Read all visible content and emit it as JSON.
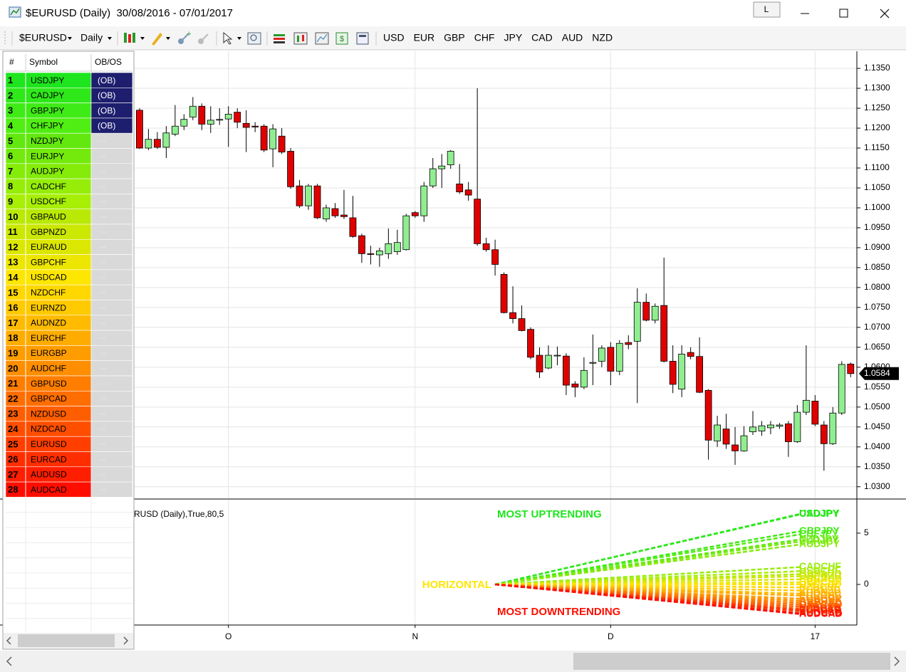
{
  "window": {
    "title": "$EURUSD (Daily)  30/08/2016 - 07/01/2017",
    "button": "L"
  },
  "toolbar": {
    "symbol": "$EURUSD",
    "period": "Daily",
    "currencies": [
      "USD",
      "EUR",
      "GBP",
      "CHF",
      "JPY",
      "CAD",
      "AUD",
      "NZD"
    ]
  },
  "symbol_table": {
    "headers": [
      "#",
      "Symbol",
      "OB/OS"
    ],
    "rows": [
      {
        "rank": 1,
        "symbol": "USDJPY",
        "obos": "(OB)"
      },
      {
        "rank": 2,
        "symbol": "CADJPY",
        "obos": "(OB)"
      },
      {
        "rank": 3,
        "symbol": "GBPJPY",
        "obos": "(OB)"
      },
      {
        "rank": 4,
        "symbol": "CHFJPY",
        "obos": "(OB)"
      },
      {
        "rank": 5,
        "symbol": "NZDJPY",
        "obos": "..."
      },
      {
        "rank": 6,
        "symbol": "EURJPY",
        "obos": "..."
      },
      {
        "rank": 7,
        "symbol": "AUDJPY",
        "obos": "..."
      },
      {
        "rank": 8,
        "symbol": "CADCHF",
        "obos": "..."
      },
      {
        "rank": 9,
        "symbol": "USDCHF",
        "obos": "..."
      },
      {
        "rank": 10,
        "symbol": "GBPAUD",
        "obos": "..."
      },
      {
        "rank": 11,
        "symbol": "GBPNZD",
        "obos": "..."
      },
      {
        "rank": 12,
        "symbol": "EURAUD",
        "obos": "..."
      },
      {
        "rank": 13,
        "symbol": "GBPCHF",
        "obos": "..."
      },
      {
        "rank": 14,
        "symbol": "USDCAD",
        "obos": "..."
      },
      {
        "rank": 15,
        "symbol": "NZDCHF",
        "obos": "..."
      },
      {
        "rank": 16,
        "symbol": "EURNZD",
        "obos": "..."
      },
      {
        "rank": 17,
        "symbol": "AUDNZD",
        "obos": "..."
      },
      {
        "rank": 18,
        "symbol": "EURCHF",
        "obos": "..."
      },
      {
        "rank": 19,
        "symbol": "EURGBP",
        "obos": "..."
      },
      {
        "rank": 20,
        "symbol": "AUDCHF",
        "obos": "..."
      },
      {
        "rank": 21,
        "symbol": "GBPUSD",
        "obos": "..."
      },
      {
        "rank": 22,
        "symbol": "GBPCAD",
        "obos": "..."
      },
      {
        "rank": 23,
        "symbol": "NZDUSD",
        "obos": "..."
      },
      {
        "rank": 24,
        "symbol": "NZDCAD",
        "obos": "..."
      },
      {
        "rank": 25,
        "symbol": "EURUSD",
        "obos": "..."
      },
      {
        "rank": 26,
        "symbol": "EURCAD",
        "obos": "..."
      },
      {
        "rank": 27,
        "symbol": "AUDUSD",
        "obos": "..."
      },
      {
        "rank": 28,
        "symbol": "AUDCAD",
        "obos": "..."
      }
    ]
  },
  "chart_data": [
    {
      "type": "candlestick",
      "up_color": "#90ee90",
      "down_color": "#e00000",
      "grid": true,
      "xlim": [
        -15.3,
        80.7
      ],
      "xticks": [
        {
          "value": 10,
          "label": "O"
        },
        {
          "value": 31,
          "label": "N"
        },
        {
          "value": 53,
          "label": "D"
        },
        {
          "value": 76,
          "label": "17"
        }
      ],
      "ylim": [
        1.0271,
        1.1393
      ],
      "yticks": [
        {
          "value": 1.03,
          "label": "1.0300"
        },
        {
          "value": 1.035,
          "label": "1.0350"
        },
        {
          "value": 1.04,
          "label": "1.0400"
        },
        {
          "value": 1.045,
          "label": "1.0450"
        },
        {
          "value": 1.05,
          "label": "1.0500"
        },
        {
          "value": 1.055,
          "label": "1.0550"
        },
        {
          "value": 1.06,
          "label": "1.0600"
        },
        {
          "value": 1.065,
          "label": "1.0650"
        },
        {
          "value": 1.07,
          "label": "1.0700"
        },
        {
          "value": 1.075,
          "label": "1.0750"
        },
        {
          "value": 1.08,
          "label": "1.0800"
        },
        {
          "value": 1.085,
          "label": "1.0850"
        },
        {
          "value": 1.09,
          "label": "1.0900"
        },
        {
          "value": 1.095,
          "label": "1.0950"
        },
        {
          "value": 1.1,
          "label": "1.1000"
        },
        {
          "value": 1.105,
          "label": "1.1050"
        },
        {
          "value": 1.11,
          "label": "1.1100"
        },
        {
          "value": 1.115,
          "label": "1.1150"
        },
        {
          "value": 1.12,
          "label": "1.1200"
        },
        {
          "value": 1.125,
          "label": "1.1250"
        },
        {
          "value": 1.13,
          "label": "1.1300"
        },
        {
          "value": 1.135,
          "label": "1.1350"
        }
      ],
      "open": [
        1.1245,
        1.115,
        1.1172,
        1.1152,
        1.1185,
        1.1205,
        1.1228,
        1.1255,
        1.121,
        1.122,
        1.1223,
        1.124,
        1.1212,
        1.1205,
        1.1205,
        1.1148,
        1.118,
        1.1142,
        1.1055,
        1.1005,
        1.1055,
        1.0972,
        1.0998,
        1.0982,
        1.0975,
        1.093,
        1.0885,
        1.0882,
        1.0885,
        1.089,
        1.0895,
        1.0988,
        1.098,
        1.1055,
        1.1098,
        1.1108,
        1.106,
        1.1045,
        1.1022,
        1.091,
        1.0895,
        1.0833,
        1.0737,
        1.0722,
        1.0695,
        1.063,
        1.0598,
        1.063,
        1.0628,
        1.0558,
        1.055,
        1.061,
        1.0615,
        1.065,
        1.059,
        1.0662,
        1.0665,
        1.0763,
        1.0718,
        1.0755,
        1.0615,
        1.0545,
        1.0637,
        1.0627,
        1.0542,
        1.0415,
        1.0445,
        1.0405,
        1.039,
        1.0438,
        1.044,
        1.0448,
        1.0452,
        1.0458,
        1.0413,
        1.0487,
        1.0515,
        1.0455,
        1.0408,
        1.0485,
        1.0608
      ],
      "high": [
        1.125,
        1.1198,
        1.119,
        1.1205,
        1.1258,
        1.1235,
        1.1278,
        1.1262,
        1.1255,
        1.125,
        1.1255,
        1.125,
        1.1245,
        1.1215,
        1.121,
        1.121,
        1.12,
        1.115,
        1.107,
        1.106,
        1.106,
        1.1008,
        1.1012,
        1.1045,
        1.103,
        1.0935,
        1.0905,
        1.09,
        1.0948,
        1.0945,
        1.0985,
        1.0992,
        1.1065,
        1.1125,
        1.1135,
        1.1145,
        1.111,
        1.1065,
        1.13,
        1.0925,
        1.092,
        1.0838,
        1.0803,
        1.0755,
        1.07,
        1.065,
        1.0655,
        1.0652,
        1.0635,
        1.0565,
        1.0625,
        1.0682,
        1.0655,
        1.0663,
        1.0668,
        1.068,
        1.0798,
        1.0785,
        1.076,
        1.0875,
        1.0655,
        1.0655,
        1.065,
        1.0675,
        1.0545,
        1.0478,
        1.0483,
        1.045,
        1.0452,
        1.049,
        1.0465,
        1.0465,
        1.046,
        1.0465,
        1.0505,
        1.0655,
        1.053,
        1.0465,
        1.05,
        1.0615,
        1.0612
      ],
      "low": [
        1.1148,
        1.1145,
        1.1148,
        1.1125,
        1.118,
        1.1195,
        1.122,
        1.1195,
        1.1188,
        1.1208,
        1.1153,
        1.12,
        1.114,
        1.119,
        1.114,
        1.1102,
        1.1135,
        1.1048,
        1.1,
        1.0995,
        1.0972,
        1.0965,
        1.0975,
        1.0972,
        1.0925,
        1.0862,
        1.0858,
        1.0852,
        1.0872,
        1.0882,
        1.0893,
        1.0975,
        1.0965,
        1.105,
        1.105,
        1.1098,
        1.1035,
        1.1018,
        1.0905,
        1.089,
        1.083,
        1.0735,
        1.071,
        1.069,
        1.062,
        1.0573,
        1.0595,
        1.0605,
        1.053,
        1.0525,
        1.0545,
        1.0555,
        1.06,
        1.0555,
        1.058,
        1.0645,
        1.051,
        1.0715,
        1.071,
        1.0612,
        1.0535,
        1.0525,
        1.062,
        1.0535,
        1.0368,
        1.04,
        1.0395,
        1.0355,
        1.0388,
        1.043,
        1.0428,
        1.0432,
        1.0445,
        1.0375,
        1.041,
        1.048,
        1.0452,
        1.034,
        1.0405,
        1.048,
        1.0575
      ],
      "close": [
        1.115,
        1.1172,
        1.1152,
        1.1188,
        1.1205,
        1.1222,
        1.1255,
        1.121,
        1.122,
        1.1222,
        1.1235,
        1.1215,
        1.1202,
        1.1203,
        1.1145,
        1.1198,
        1.114,
        1.1053,
        1.1005,
        1.1055,
        1.0975,
        1.1,
        1.098,
        1.0978,
        1.0928,
        1.0885,
        1.0883,
        1.0892,
        1.091,
        1.0913,
        1.098,
        1.098,
        1.1055,
        1.1098,
        1.1105,
        1.1142,
        1.104,
        1.1032,
        1.091,
        1.0895,
        1.0858,
        1.0737,
        1.0722,
        1.0692,
        1.0625,
        1.0588,
        1.063,
        1.063,
        1.0555,
        1.055,
        1.0592,
        1.0612,
        1.0648,
        1.059,
        1.066,
        1.0657,
        1.0763,
        1.0718,
        1.0753,
        1.0615,
        1.0557,
        1.0633,
        1.0627,
        1.0537,
        1.0417,
        1.0455,
        1.0407,
        1.039,
        1.0428,
        1.045,
        1.0453,
        1.0455,
        1.0455,
        1.0413,
        1.0487,
        1.0517,
        1.0457,
        1.0408,
        1.0485,
        1.0607,
        1.0584
      ]
    },
    {
      "type": "line",
      "title": "RUSD (Daily),True,80,5",
      "annotations": {
        "top": "MOST UPTRENDING",
        "middle": "HORIZONTAL",
        "bottom": "MOST DOWNTRENDING"
      },
      "ylim": [
        -3.96,
        8.26
      ],
      "yticks": [
        0,
        5
      ],
      "series": [
        {
          "name": "USDJPY",
          "color": "#1ee51e",
          "values": [
            0,
            6.9
          ]
        },
        {
          "name": "CADJPY",
          "color": "#2ee81a",
          "values": [
            0,
            6.85
          ]
        },
        {
          "name": "GBPJPY",
          "color": "#3feb16",
          "values": [
            0,
            5.2
          ]
        },
        {
          "name": "CHFJPY",
          "color": "#50ee12",
          "values": [
            0,
            4.9
          ]
        },
        {
          "name": "NZDJPY",
          "color": "#62e80e",
          "values": [
            0,
            4.4
          ]
        },
        {
          "name": "EURJPY",
          "color": "#73ea0c",
          "values": [
            0,
            4.2
          ]
        },
        {
          "name": "AUDJPY",
          "color": "#85ec0a",
          "values": [
            0,
            3.9
          ]
        },
        {
          "name": "CADCHF",
          "color": "#96ee08",
          "values": [
            0,
            1.7
          ]
        },
        {
          "name": "USDCHF",
          "color": "#a8ef06",
          "values": [
            0,
            1.3
          ]
        },
        {
          "name": "GBPAUD",
          "color": "#b9e904",
          "values": [
            0,
            1.0
          ]
        },
        {
          "name": "GBPNZD",
          "color": "#cbe802",
          "values": [
            0,
            0.8
          ]
        },
        {
          "name": "EURAUD",
          "color": "#dce701",
          "values": [
            0,
            0.5
          ]
        },
        {
          "name": "GBPCHF",
          "color": "#ede600",
          "values": [
            0,
            0.2
          ]
        },
        {
          "name": "USDCAD",
          "color": "#fde600",
          "values": [
            0,
            0
          ]
        },
        {
          "name": "NZDCHF",
          "color": "#ffd800",
          "values": [
            0,
            -0.3
          ]
        },
        {
          "name": "EURNZD",
          "color": "#ffca00",
          "values": [
            0,
            -0.6
          ]
        },
        {
          "name": "AUDNZD",
          "color": "#ffbb00",
          "values": [
            0,
            -0.9
          ]
        },
        {
          "name": "EURCHF",
          "color": "#ffac00",
          "values": [
            0,
            -1.1
          ]
        },
        {
          "name": "EURGBP",
          "color": "#ff9d00",
          "values": [
            0,
            -1.4
          ]
        },
        {
          "name": "AUDCHF",
          "color": "#ff8e00",
          "values": [
            0,
            -1.6
          ]
        },
        {
          "name": "GBPUSD",
          "color": "#ff7e00",
          "values": [
            0,
            -1.8
          ]
        },
        {
          "name": "GBPCAD",
          "color": "#ff6e00",
          "values": [
            0,
            -2.0
          ]
        },
        {
          "name": "NZDUSD",
          "color": "#ff5e00",
          "values": [
            0,
            -2.2
          ]
        },
        {
          "name": "NZDCAD",
          "color": "#ff4e00",
          "values": [
            0,
            -2.4
          ]
        },
        {
          "name": "EURUSD",
          "color": "#ff3e00",
          "values": [
            0,
            -2.5
          ]
        },
        {
          "name": "EURCAD",
          "color": "#ff2e00",
          "values": [
            0,
            -2.6
          ]
        },
        {
          "name": "AUDUSD",
          "color": "#ff1e00",
          "values": [
            0,
            -2.8
          ]
        },
        {
          "name": "AUDCAD",
          "color": "#ff0e00",
          "values": [
            0,
            -2.9
          ]
        }
      ]
    }
  ]
}
